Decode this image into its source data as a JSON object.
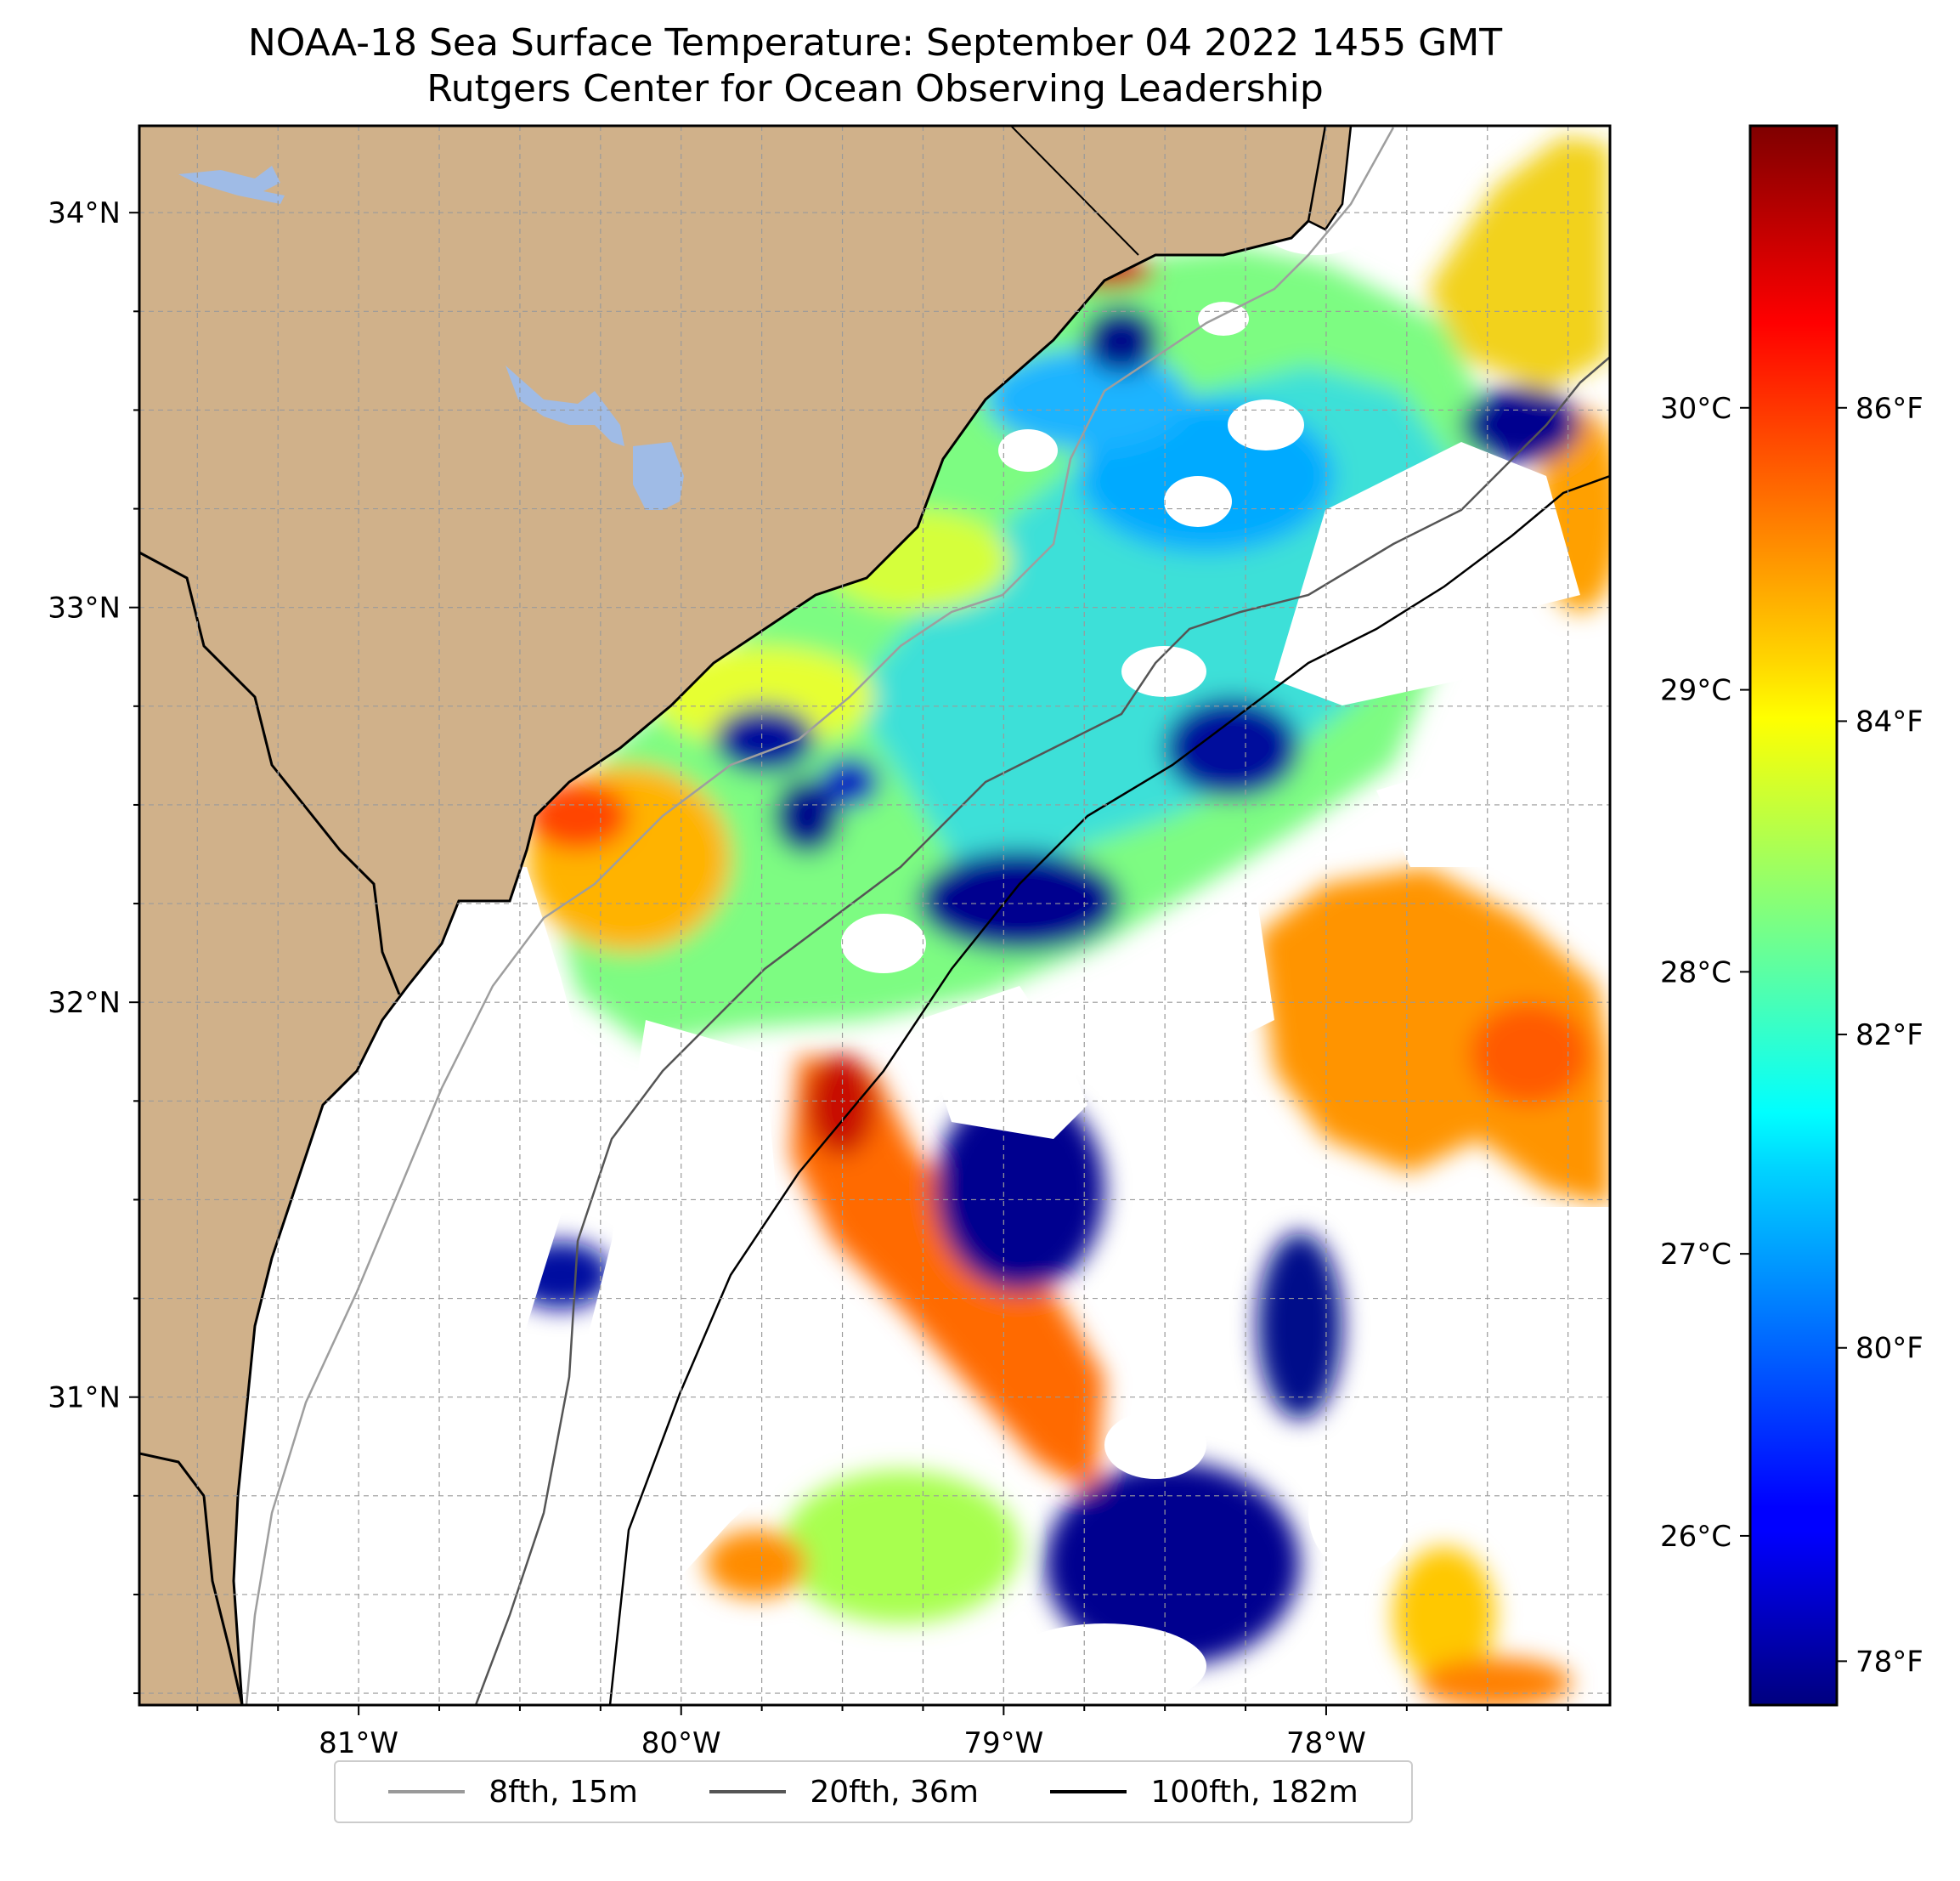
{
  "title": {
    "line1": "NOAA-18 Sea Surface Temperature: September 04 2022 1455 GMT",
    "line2": "Rutgers Center for Ocean Observing Leadership"
  },
  "map": {
    "lon_range": [
      -81.68,
      -77.12
    ],
    "lat_range": [
      30.22,
      34.22
    ],
    "lat_ticks": [
      {
        "value": 34,
        "label": "34°N"
      },
      {
        "value": 33,
        "label": "33°N"
      },
      {
        "value": 32,
        "label": "32°N"
      },
      {
        "value": 31,
        "label": "31°N"
      }
    ],
    "lon_ticks": [
      {
        "value": -81,
        "label": "81°W"
      },
      {
        "value": -80,
        "label": "80°W"
      },
      {
        "value": -79,
        "label": "79°W"
      },
      {
        "value": -78,
        "label": "78°W"
      }
    ],
    "grid": true,
    "land_color": "#d0b18a",
    "lake_color": "#9fbbe6"
  },
  "colorbar": {
    "colormap": "jet",
    "range_c": [
      25.4,
      31.0
    ],
    "celsius_ticks": [
      {
        "value": 30,
        "label": "30°C"
      },
      {
        "value": 29,
        "label": "29°C"
      },
      {
        "value": 28,
        "label": "28°C"
      },
      {
        "value": 27,
        "label": "27°C"
      },
      {
        "value": 26,
        "label": "26°C"
      }
    ],
    "fahrenheit_ticks": [
      {
        "value": 86,
        "label": "86°F"
      },
      {
        "value": 84,
        "label": "84°F"
      },
      {
        "value": 82,
        "label": "82°F"
      },
      {
        "value": 80,
        "label": "80°F"
      },
      {
        "value": 78,
        "label": "78°F"
      }
    ]
  },
  "legend": {
    "position": "bottom-center",
    "items": [
      {
        "label": "8fth, 15m",
        "color": "#999999"
      },
      {
        "label": "20fth, 36m",
        "color": "#555555"
      },
      {
        "label": "100fth, 182m",
        "color": "#000000"
      }
    ]
  }
}
